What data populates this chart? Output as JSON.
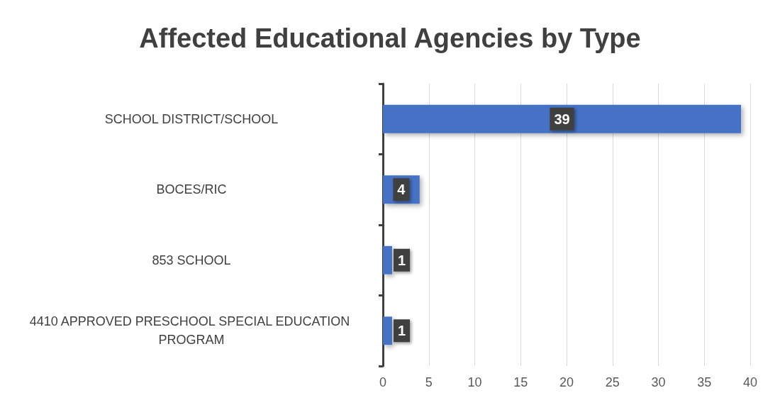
{
  "chart_data": {
    "type": "bar",
    "orientation": "horizontal",
    "title": "Affected Educational Agencies by Type",
    "categories": [
      "SCHOOL DISTRICT/SCHOOL",
      "BOCES/RIC",
      "853 SCHOOL",
      "4410 APPROVED PRESCHOOL SPECIAL EDUCATION PROGRAM"
    ],
    "values": [
      39,
      4,
      1,
      1
    ],
    "color": "#4472c4",
    "xlim": [
      0,
      40
    ],
    "xticks": [
      0,
      5,
      10,
      15,
      20,
      25,
      30,
      35,
      40
    ],
    "grid": "x",
    "data_labels": true
  }
}
